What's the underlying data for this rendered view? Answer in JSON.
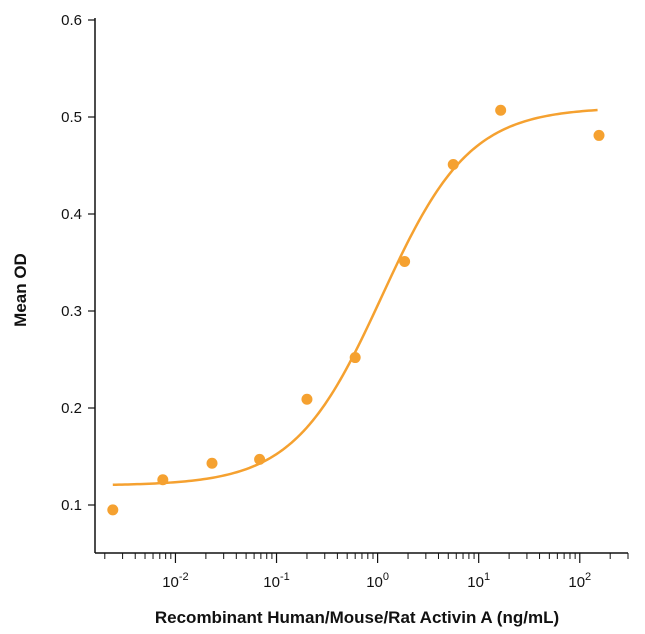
{
  "chart_data": {
    "type": "scatter",
    "title": "",
    "xlabel": "Recombinant Human/Mouse/Rat Activin A (ng/mL)",
    "ylabel": "Mean OD",
    "x_scale": "log10",
    "xlim": [
      0.0016,
      300
    ],
    "ylim": [
      0.05,
      0.6
    ],
    "x_ticks": [
      {
        "value": 0.01,
        "base": "10",
        "exp": "-2"
      },
      {
        "value": 0.1,
        "base": "10",
        "exp": "-1"
      },
      {
        "value": 1,
        "base": "10",
        "exp": "0"
      },
      {
        "value": 10,
        "base": "10",
        "exp": "1"
      },
      {
        "value": 100,
        "base": "10",
        "exp": "2"
      }
    ],
    "y_ticks": [
      {
        "value": 0.1,
        "label": "0.1"
      },
      {
        "value": 0.2,
        "label": "0.2"
      },
      {
        "value": 0.3,
        "label": "0.3"
      },
      {
        "value": 0.4,
        "label": "0.4"
      },
      {
        "value": 0.5,
        "label": "0.5"
      },
      {
        "value": 0.6,
        "label": "0.6"
      }
    ],
    "series": [
      {
        "name": "Mean OD",
        "color": "#F5A130",
        "points": [
          {
            "x": 0.0024,
            "y": 0.095
          },
          {
            "x": 0.0075,
            "y": 0.126
          },
          {
            "x": 0.023,
            "y": 0.143
          },
          {
            "x": 0.068,
            "y": 0.147
          },
          {
            "x": 0.2,
            "y": 0.209
          },
          {
            "x": 0.6,
            "y": 0.252
          },
          {
            "x": 1.85,
            "y": 0.351
          },
          {
            "x": 5.6,
            "y": 0.451
          },
          {
            "x": 16.5,
            "y": 0.507
          },
          {
            "x": 155,
            "y": 0.481
          }
        ]
      }
    ],
    "fit_curve": {
      "model": "4PL",
      "bottom": 0.12,
      "top": 0.51,
      "ec50": 1.1,
      "hill": 1.0,
      "x_range": [
        0.0024,
        150
      ],
      "color": "#F5A130"
    }
  }
}
